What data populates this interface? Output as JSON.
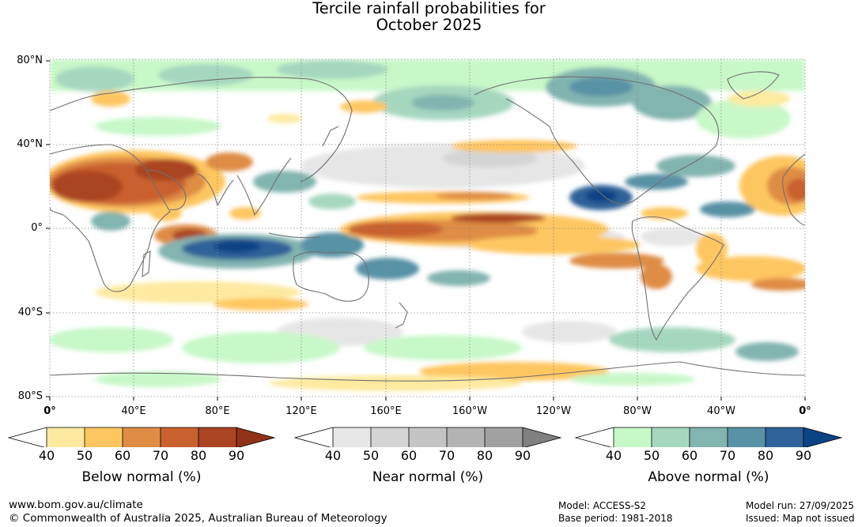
{
  "title": {
    "line1": "Tercile rainfall probabilities for",
    "line2": "October 2025"
  },
  "map": {
    "lat_labels": [
      "80°N",
      "40°N",
      "0°",
      "40°S",
      "80°S"
    ],
    "lon_labels": [
      "0°",
      "40°E",
      "80°E",
      "120°E",
      "160°E",
      "160°W",
      "120°W",
      "80°W",
      "40°W",
      "0°"
    ],
    "colors": {
      "ocean_default": "#ffffff",
      "coast": "#707070",
      "grid": "#888888"
    }
  },
  "legend": {
    "ticks": [
      "40",
      "50",
      "60",
      "70",
      "80",
      "90"
    ],
    "below": {
      "label": "Below normal (%)",
      "colors": [
        "#ffffff",
        "#fdeaa0",
        "#fec661",
        "#df8c45",
        "#c9612f",
        "#aa4422",
        "#8f3318"
      ]
    },
    "near": {
      "label": "Near normal (%)",
      "colors": [
        "#ffffff",
        "#e6e6e6",
        "#d4d4d4",
        "#c4c4c4",
        "#b3b3b3",
        "#a0a0a0",
        "#808080"
      ]
    },
    "above": {
      "label": "Above normal (%)",
      "colors": [
        "#ffffff",
        "#c7f8c8",
        "#a5d7bf",
        "#82b4b0",
        "#5992a5",
        "#2e6299",
        "#0c4384"
      ]
    }
  },
  "footer": {
    "website": "www.bom.gov.au/climate",
    "copyright": "© Commonwealth of Australia 2025, Australian Bureau of Meteorology",
    "model": "Model: ACCESS-S2",
    "base_period": "Base period: 1981-2018",
    "model_run": "Model run: 27/09/2025",
    "issued": "Issued: Map not issued"
  }
}
